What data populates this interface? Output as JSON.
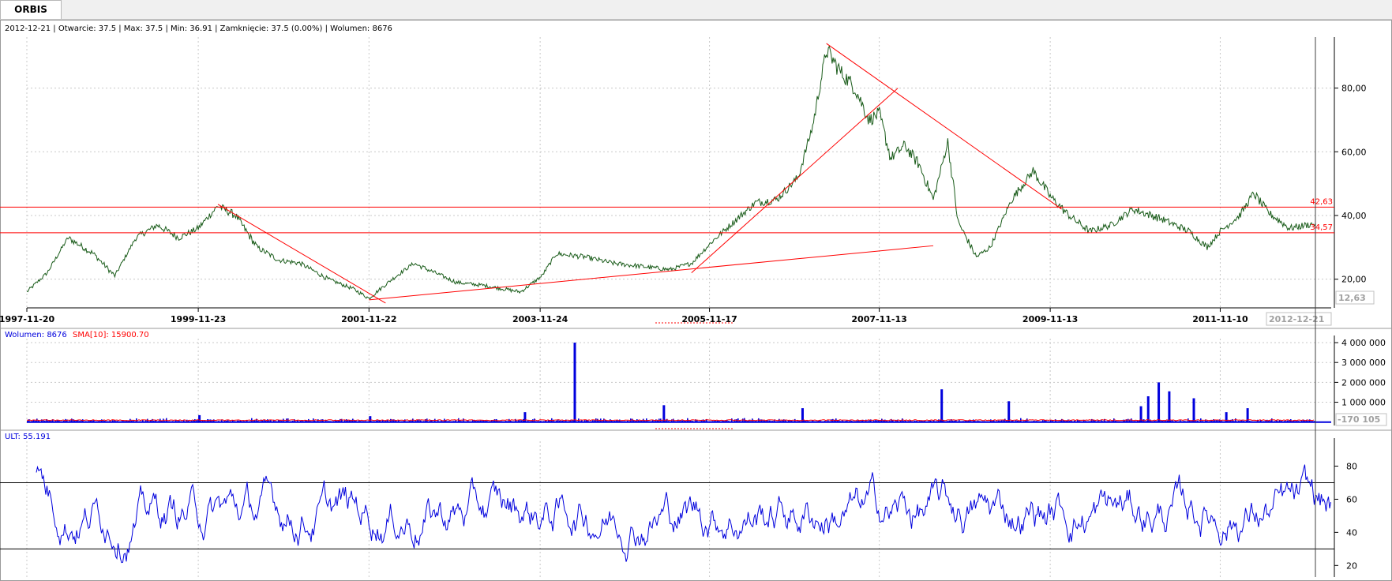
{
  "tab": {
    "label": "ORBIS"
  },
  "header": {
    "info": "2012-12-21 | Otwarcie: 37.5 | Max: 37.5 | Min: 36.91 | Zamknięcie: 37.5 (0.00%) | Wolumen: 8676"
  },
  "chart_data": [
    {
      "type": "line",
      "panel": "price",
      "x_tick_labels": [
        "1997-11-20",
        "1999-11-23",
        "2001-11-22",
        "2003-11-24",
        "2005-11-17",
        "2007-11-13",
        "2009-11-13",
        "2011-11-10"
      ],
      "x_current_label": "2012-12-21",
      "y_tick_labels": [
        "20,00",
        "40,00",
        "60,00",
        "80,00"
      ],
      "y_ticks": [
        20,
        40,
        60,
        80
      ],
      "ylim": [
        11,
        96
      ],
      "y_axis_low_label": "12,63",
      "grid": true,
      "price_series": {
        "color": "#1a5c1a",
        "points": [
          [
            "1997-11-20",
            16
          ],
          [
            "1998-02-15",
            22
          ],
          [
            "1998-05-15",
            33
          ],
          [
            "1998-09-01",
            28
          ],
          [
            "1998-12-01",
            21
          ],
          [
            "1999-03-01",
            33
          ],
          [
            "1999-06-01",
            37
          ],
          [
            "1999-09-01",
            33
          ],
          [
            "1999-11-23",
            36
          ],
          [
            "2000-02-15",
            43
          ],
          [
            "2000-05-01",
            40
          ],
          [
            "2000-08-01",
            30
          ],
          [
            "2000-11-01",
            26
          ],
          [
            "2001-02-01",
            25
          ],
          [
            "2001-06-01",
            20
          ],
          [
            "2001-09-15",
            17
          ],
          [
            "2001-11-22",
            14
          ],
          [
            "2002-03-01",
            20
          ],
          [
            "2002-06-01",
            25
          ],
          [
            "2002-09-01",
            22
          ],
          [
            "2002-12-01",
            19
          ],
          [
            "2003-04-01",
            18
          ],
          [
            "2003-09-01",
            16
          ],
          [
            "2003-12-01",
            21
          ],
          [
            "2004-02-01",
            28
          ],
          [
            "2004-06-01",
            27
          ],
          [
            "2004-10-01",
            25
          ],
          [
            "2005-02-01",
            24
          ],
          [
            "2005-06-01",
            23
          ],
          [
            "2005-09-01",
            25
          ],
          [
            "2005-12-01",
            32
          ],
          [
            "2006-03-01",
            38
          ],
          [
            "2006-06-01",
            44
          ],
          [
            "2006-09-01",
            45
          ],
          [
            "2006-12-01",
            52
          ],
          [
            "2007-02-01",
            68
          ],
          [
            "2007-04-01",
            92
          ],
          [
            "2007-06-01",
            85
          ],
          [
            "2007-08-01",
            80
          ],
          [
            "2007-10-01",
            70
          ],
          [
            "2007-11-13",
            72
          ],
          [
            "2008-01-01",
            58
          ],
          [
            "2008-03-01",
            62
          ],
          [
            "2008-05-01",
            56
          ],
          [
            "2008-07-01",
            45
          ],
          [
            "2008-09-01",
            63
          ],
          [
            "2008-10-15",
            38
          ],
          [
            "2009-01-01",
            27
          ],
          [
            "2009-03-01",
            30
          ],
          [
            "2009-06-01",
            45
          ],
          [
            "2009-09-01",
            54
          ],
          [
            "2009-11-13",
            46
          ],
          [
            "2010-02-01",
            40
          ],
          [
            "2010-05-01",
            35
          ],
          [
            "2010-08-01",
            37
          ],
          [
            "2010-11-01",
            42
          ],
          [
            "2011-03-01",
            39
          ],
          [
            "2011-07-01",
            35
          ],
          [
            "2011-09-15",
            30
          ],
          [
            "2011-11-10",
            35
          ],
          [
            "2012-02-01",
            40
          ],
          [
            "2012-04-01",
            47
          ],
          [
            "2012-06-01",
            41
          ],
          [
            "2012-09-01",
            36
          ],
          [
            "2012-12-21",
            37.5
          ]
        ]
      },
      "horizontal_lines": [
        {
          "value": 42.63,
          "label": "42,63",
          "color": "#ff0000"
        },
        {
          "value": 34.57,
          "label": "34,57",
          "color": "#ff0000"
        }
      ],
      "trend_lines": [
        {
          "from": [
            "2000-02-15",
            43.5
          ],
          "to": [
            "2002-02-01",
            12.5
          ],
          "color": "#ff0000"
        },
        {
          "from": [
            "2001-11-22",
            13.5
          ],
          "to": [
            "2008-07-01",
            30.5
          ],
          "color": "#ff0000"
        },
        {
          "from": [
            "2005-09-01",
            22
          ],
          "to": [
            "2008-02-01",
            80
          ],
          "color": "#ff0000"
        },
        {
          "from": [
            "2007-04-01",
            94
          ],
          "to": [
            "2010-01-01",
            42
          ],
          "color": "#ff0000"
        }
      ]
    },
    {
      "type": "bar",
      "panel": "volume",
      "title": "Wolumen: 8676",
      "sma_title": "SMA[10]: 15900.70",
      "y_tick_labels": [
        "1 000 000",
        "2 000 000",
        "3 000 000",
        "4 000 000"
      ],
      "y_ticks": [
        1000000,
        2000000,
        3000000,
        4000000
      ],
      "ylim": [
        -170105,
        4200000
      ],
      "y_axis_low_label": "-170 105",
      "bar_color": "#0000dd",
      "sma_color": "#ff0000",
      "spikes": [
        [
          "1999-11-23",
          350000
        ],
        [
          "2001-11-22",
          300000
        ],
        [
          "2003-09-15",
          500000
        ],
        [
          "2004-04-15",
          4000000
        ],
        [
          "2005-05-01",
          850000
        ],
        [
          "2006-12-15",
          700000
        ],
        [
          "2008-08-01",
          1650000
        ],
        [
          "2009-05-15",
          1050000
        ],
        [
          "2010-12-01",
          800000
        ],
        [
          "2011-01-01",
          1300000
        ],
        [
          "2011-02-15",
          2000000
        ],
        [
          "2011-04-01",
          1550000
        ],
        [
          "2011-07-15",
          1200000
        ],
        [
          "2011-12-01",
          500000
        ],
        [
          "2012-03-01",
          700000
        ]
      ]
    },
    {
      "type": "line",
      "panel": "oscillator",
      "title": "ULT: 55.191",
      "y_tick_labels": [
        "20",
        "40",
        "60",
        "80"
      ],
      "y_ticks": [
        20,
        40,
        60,
        80
      ],
      "ylim": [
        13,
        95
      ],
      "reference_lines": [
        30,
        70
      ],
      "line_color": "#0000dd"
    }
  ]
}
